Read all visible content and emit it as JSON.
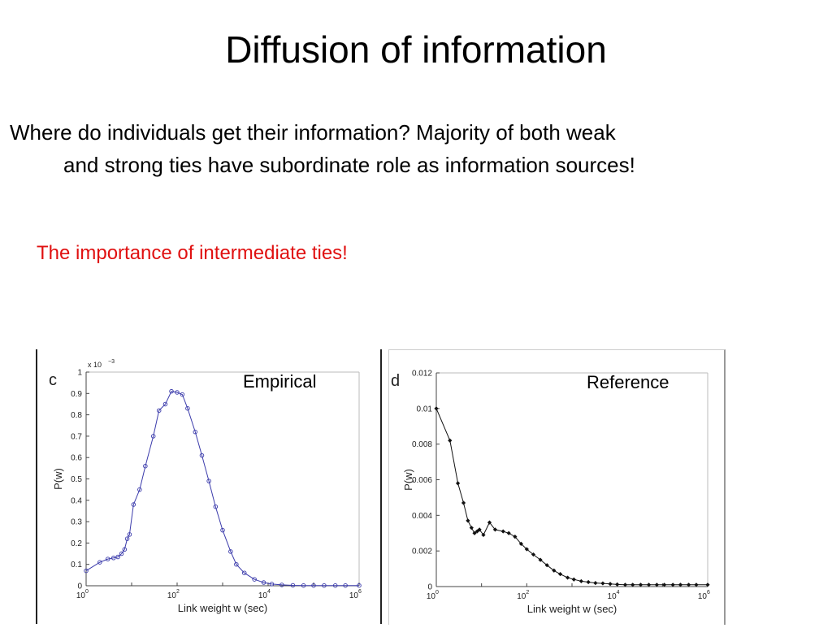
{
  "slide": {
    "title": "Diffusion of information",
    "bullet_line1": "Where do individuals get their information? Majority of both weak",
    "bullet_line2": "and strong ties have  subordinate role as information sources!",
    "highlight": "The importance of intermediate ties!"
  },
  "chart_data": [
    {
      "type": "line",
      "panel_label": "c",
      "annotation": "Empirical",
      "multiplier_label": "x 10",
      "multiplier_exp": "−3",
      "xlabel": "Link weight w (sec)",
      "ylabel": "P(w)",
      "xscale": "log",
      "xlim": [
        1,
        1000000
      ],
      "ylim": [
        0,
        1
      ],
      "xticks": [
        {
          "base": "10",
          "exp": "0"
        },
        {
          "base": "10",
          "exp": "2"
        },
        {
          "base": "10",
          "exp": "4"
        },
        {
          "base": "10",
          "exp": "6"
        }
      ],
      "yticks": [
        "0",
        "0.1",
        "0.2",
        "0.3",
        "0.4",
        "0.5",
        "0.6",
        "0.7",
        "0.8",
        "0.9",
        "1"
      ],
      "marker": "circle",
      "color": "#3b3bab",
      "series": [
        {
          "x": [
            1,
            2,
            3,
            4,
            5,
            6,
            7,
            8,
            9,
            11,
            15,
            20,
            30,
            40,
            55,
            75,
            100,
            130,
            170,
            250,
            350,
            500,
            700,
            1000,
            1500,
            2000,
            3000,
            5000,
            8000,
            12000,
            20000,
            35000,
            60000,
            100000,
            170000,
            300000,
            500000,
            1000000
          ],
          "y": [
            0.07,
            0.11,
            0.125,
            0.13,
            0.135,
            0.15,
            0.17,
            0.22,
            0.24,
            0.38,
            0.45,
            0.56,
            0.7,
            0.82,
            0.85,
            0.91,
            0.905,
            0.895,
            0.83,
            0.72,
            0.61,
            0.49,
            0.37,
            0.26,
            0.16,
            0.1,
            0.06,
            0.03,
            0.015,
            0.008,
            0.004,
            0.002,
            0.001,
            0.001,
            0.001,
            0.001,
            0.001,
            0.001
          ]
        }
      ]
    },
    {
      "type": "line",
      "panel_label": "d",
      "annotation": "Reference",
      "xlabel": "Link weight w (sec)",
      "ylabel": "P(w)",
      "xscale": "log",
      "xlim": [
        1,
        1000000
      ],
      "ylim": [
        0,
        0.012
      ],
      "xticks": [
        {
          "base": "10",
          "exp": "0"
        },
        {
          "base": "10",
          "exp": "2"
        },
        {
          "base": "10",
          "exp": "4"
        },
        {
          "base": "10",
          "exp": "6"
        }
      ],
      "yticks": [
        "0",
        "0.002",
        "0.004",
        "0.006",
        "0.008",
        "0.01",
        "0.012"
      ],
      "marker": "diamond",
      "color": "#111111",
      "series": [
        {
          "x": [
            1,
            2,
            3,
            4,
            5,
            6,
            7,
            8,
            9,
            11,
            15,
            20,
            30,
            40,
            55,
            75,
            100,
            140,
            200,
            280,
            400,
            550,
            800,
            1100,
            1600,
            2300,
            3300,
            4800,
            7000,
            10000,
            15000,
            22000,
            33000,
            50000,
            75000,
            110000,
            170000,
            250000,
            380000,
            560000,
            1000000
          ],
          "y": [
            0.01,
            0.0082,
            0.0058,
            0.0047,
            0.0037,
            0.0033,
            0.003,
            0.0031,
            0.0032,
            0.0029,
            0.0036,
            0.0032,
            0.0031,
            0.003,
            0.0028,
            0.0024,
            0.0021,
            0.0018,
            0.0015,
            0.0012,
            0.0009,
            0.0007,
            0.0005,
            0.0004,
            0.0003,
            0.00025,
            0.0002,
            0.00018,
            0.00015,
            0.00012,
            0.0001,
            0.0001,
            0.0001,
            0.0001,
            0.0001,
            0.0001,
            0.0001,
            0.0001,
            0.0001,
            0.0001,
            0.0001
          ]
        }
      ]
    }
  ]
}
